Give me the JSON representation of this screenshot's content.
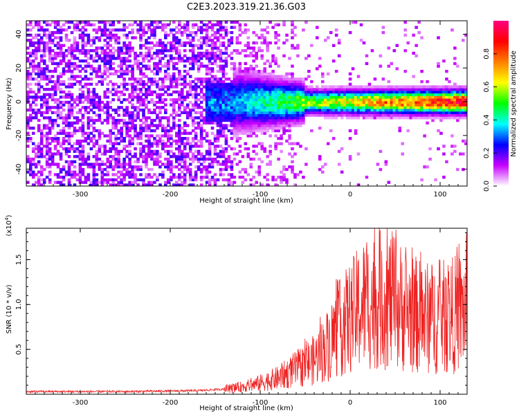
{
  "title": "C2E3.2023.319.21.36.G03",
  "chart_data": [
    {
      "type": "heatmap",
      "xlabel": "Height of straight line (km)",
      "ylabel": "Frequency (Hz)",
      "xlim": [
        -360,
        130
      ],
      "ylim": [
        -50,
        48
      ],
      "x_ticks": [
        -300,
        -200,
        -100,
        0,
        100
      ],
      "y_ticks": [
        -40,
        -20,
        0,
        20,
        40
      ],
      "colorbar": {
        "label": "Normalized spectral amplitude",
        "range": [
          0,
          1
        ],
        "ticks": [
          "0.0",
          "0.2",
          "0.4",
          "0.6",
          "0.8"
        ],
        "colors": [
          "#ffffff",
          "#c800ff",
          "#0000ff",
          "#00ffff",
          "#00ff00",
          "#ffff00",
          "#ff7f00",
          "#ff0000",
          "#ff0080"
        ]
      }
    },
    {
      "type": "line",
      "xlabel": "Height of straight line (km)",
      "ylabel": "SNR (10 * v/v)",
      "y_multiplier": "(x10",
      "y_multiplier_exp": "4",
      "y_multiplier_close": ")",
      "xlim": [
        -360,
        130
      ],
      "ylim": [
        0,
        1.85
      ],
      "x_ticks": [
        -300,
        -200,
        -100,
        0,
        100
      ],
      "y_ticks": [
        "0.5",
        "1.0",
        "1.5"
      ],
      "color": "#ee2222",
      "envelope": [
        [
          -360,
          0.03
        ],
        [
          -250,
          0.03
        ],
        [
          -170,
          0.04
        ],
        [
          -135,
          0.06
        ],
        [
          -110,
          0.1
        ],
        [
          -80,
          0.18
        ],
        [
          -60,
          0.28
        ],
        [
          -40,
          0.38
        ],
        [
          -25,
          0.55
        ],
        [
          -15,
          0.7
        ],
        [
          0,
          0.85
        ],
        [
          15,
          1.0
        ],
        [
          30,
          1.05
        ],
        [
          45,
          1.05
        ],
        [
          60,
          0.95
        ],
        [
          80,
          0.85
        ],
        [
          100,
          0.85
        ],
        [
          120,
          0.9
        ],
        [
          130,
          0.95
        ]
      ]
    }
  ]
}
